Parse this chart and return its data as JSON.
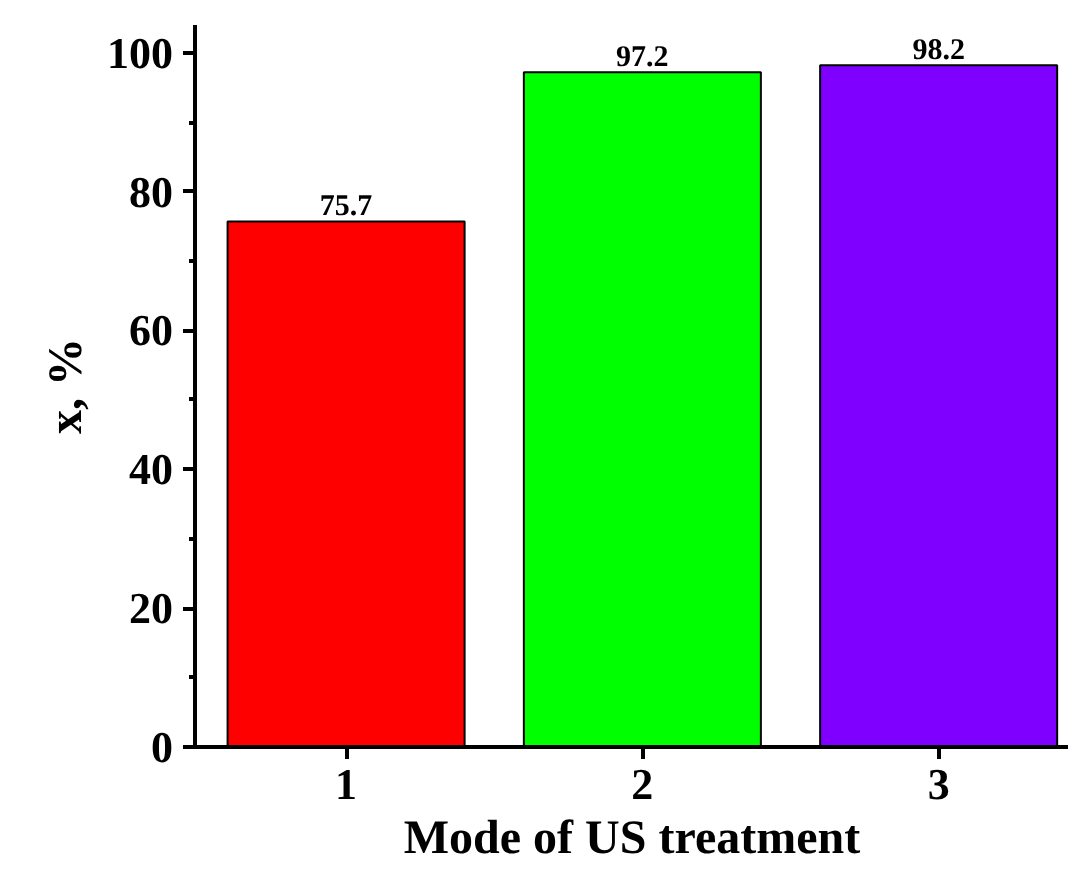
{
  "chart_data": {
    "type": "bar",
    "xlabel": "Mode of US treatment",
    "ylabel": "x, %",
    "categories": [
      "1",
      "2",
      "3"
    ],
    "values": [
      75.7,
      97.2,
      98.2
    ],
    "colors": [
      "#ff0000",
      "#00ff00",
      "#8000ff"
    ],
    "ylim": [
      0,
      104
    ],
    "yticks": [
      0,
      20,
      40,
      60,
      80,
      100
    ],
    "data_labels": true,
    "grid": false
  }
}
